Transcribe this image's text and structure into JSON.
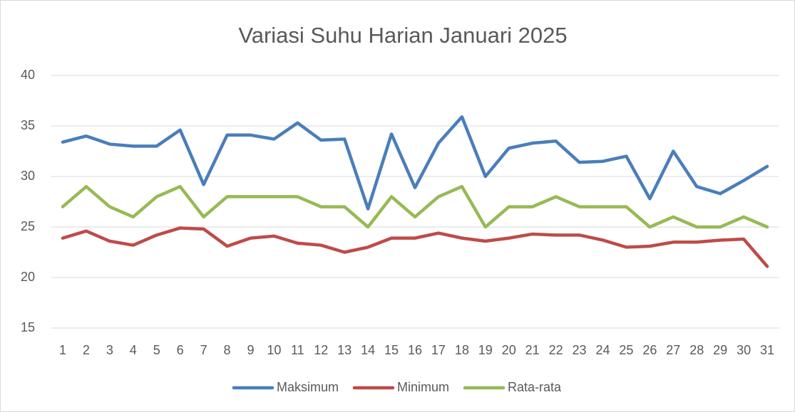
{
  "chart_data": {
    "type": "line",
    "title": "Variasi Suhu Harian Januari 2025",
    "categories": [
      "1",
      "2",
      "3",
      "4",
      "5",
      "6",
      "7",
      "8",
      "9",
      "10",
      "11",
      "12",
      "13",
      "14",
      "15",
      "16",
      "17",
      "18",
      "19",
      "20",
      "21",
      "22",
      "23",
      "24",
      "25",
      "26",
      "27",
      "28",
      "29",
      "30",
      "31"
    ],
    "series": [
      {
        "name": "Maksimum",
        "color": "#4a7ebb",
        "values": [
          33.4,
          34.0,
          33.2,
          33.0,
          33.0,
          34.6,
          29.2,
          34.1,
          34.1,
          33.7,
          35.3,
          33.6,
          33.7,
          26.8,
          34.2,
          28.9,
          33.3,
          35.9,
          30.0,
          32.8,
          33.3,
          33.5,
          31.4,
          31.5,
          32.0,
          27.8,
          32.5,
          29.0,
          28.3,
          29.6,
          31.0
        ]
      },
      {
        "name": "Minimum",
        "color": "#be4b48",
        "values": [
          23.9,
          24.6,
          23.6,
          23.2,
          24.2,
          24.9,
          24.8,
          23.1,
          23.9,
          24.1,
          23.4,
          23.2,
          22.5,
          23.0,
          23.9,
          23.9,
          24.4,
          23.9,
          23.6,
          23.9,
          24.3,
          24.2,
          24.2,
          23.7,
          23.0,
          23.1,
          23.5,
          23.5,
          23.7,
          23.8,
          21.1
        ]
      },
      {
        "name": "Rata-rata",
        "color": "#98b954",
        "values": [
          27,
          29,
          27,
          26,
          28,
          29,
          26,
          28,
          28,
          28,
          28,
          27,
          27,
          25,
          28,
          26,
          28,
          29,
          25,
          27,
          27,
          28,
          27,
          27,
          27,
          25,
          26,
          25,
          25,
          26,
          25
        ]
      }
    ],
    "ylim": [
      15,
      40
    ],
    "yticks": [
      15,
      20,
      25,
      30,
      35,
      40
    ],
    "grid": true,
    "legend": "bottom"
  }
}
